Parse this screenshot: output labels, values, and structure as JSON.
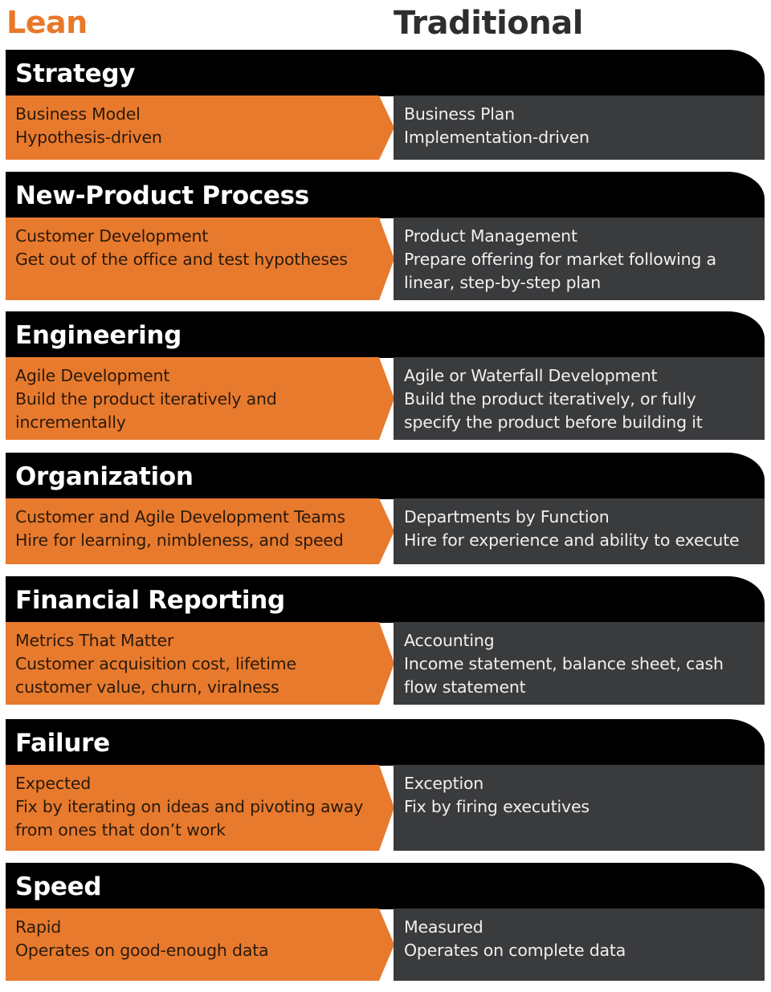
{
  "header": {
    "lean": "Lean",
    "traditional": "Traditional"
  },
  "colors": {
    "lean": "#e87a2e",
    "traditional": "#3a3b3d",
    "header_band": "#000000"
  },
  "sections": [
    {
      "title": "Strategy",
      "lean": [
        "Business Model",
        "Hypothesis-driven"
      ],
      "traditional": [
        "Business Plan",
        "Implementation-driven"
      ]
    },
    {
      "title": "New-Product Process",
      "lean": [
        "Customer Development",
        "Get out of the office and test hypotheses"
      ],
      "traditional": [
        "Product Management",
        "Prepare offering for market following a",
        "linear, step-by-step plan"
      ]
    },
    {
      "title": "Engineering",
      "lean": [
        "Agile Development",
        "Build the product iteratively and",
        "incrementally"
      ],
      "traditional": [
        "Agile or Waterfall Development",
        "Build the product iteratively, or fully",
        "specify the product before building it"
      ]
    },
    {
      "title": "Organization",
      "lean": [
        "Customer and Agile Development Teams",
        "Hire for learning, nimbleness, and speed"
      ],
      "traditional": [
        "Departments by Function",
        "Hire for experience and ability to execute"
      ]
    },
    {
      "title": "Financial Reporting",
      "lean": [
        "Metrics That Matter",
        "Customer acquisition cost, lifetime",
        "customer value, churn, viralness"
      ],
      "traditional": [
        "Accounting",
        "Income statement, balance sheet, cash",
        "flow statement"
      ]
    },
    {
      "title": "Failure",
      "lean": [
        "Expected",
        "Fix by iterating on ideas and pivoting away",
        "from ones that don’t work"
      ],
      "traditional": [
        "Exception",
        "Fix by firing executives"
      ]
    },
    {
      "title": "Speed",
      "lean": [
        "Rapid",
        "Operates on good-enough data"
      ],
      "traditional": [
        "Measured",
        "Operates on complete data"
      ]
    }
  ]
}
